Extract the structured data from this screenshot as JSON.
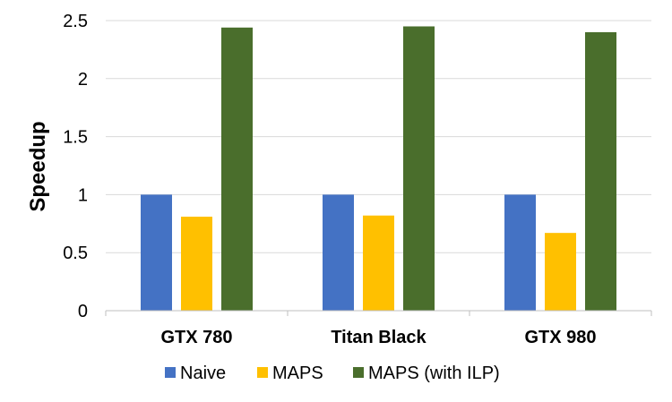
{
  "chart_data": {
    "type": "bar",
    "categories": [
      "GTX 780",
      "Titan Black",
      "GTX 980"
    ],
    "series": [
      {
        "name": "Naive",
        "values": [
          1.0,
          1.0,
          1.0
        ],
        "color": "#4472C4"
      },
      {
        "name": "MAPS",
        "values": [
          0.81,
          0.82,
          0.67
        ],
        "color": "#FFC000"
      },
      {
        "name": "MAPS (with ILP)",
        "values": [
          2.44,
          2.45,
          2.4
        ],
        "color": "#4A6E2C"
      }
    ],
    "title": "",
    "xlabel": "",
    "ylabel": "Speedup",
    "ylim": [
      0,
      2.5
    ],
    "yticks": [
      "0",
      "0.5",
      "1",
      "1.5",
      "2",
      "2.5"
    ],
    "grid": true,
    "legend_position": "bottom"
  }
}
